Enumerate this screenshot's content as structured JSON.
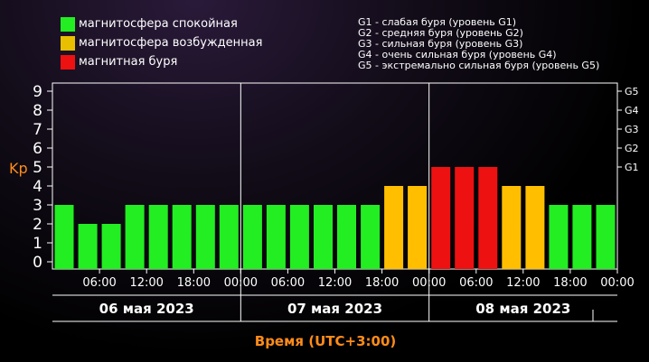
{
  "legend": [
    {
      "label": "магнитосфера спокойная",
      "color": "#22ee22"
    },
    {
      "label": "магнитосфера возбужденная",
      "color": "#e8c000"
    },
    {
      "label": "магнитная буря",
      "color": "#ee1111"
    }
  ],
  "g_levels": [
    "G1 - слабая буря (уровень G1)",
    "G2 - средняя буря (уровень G2)",
    "G3 - сильная буря (уровень G3)",
    "G4 - очень сильная буря (уровень G4)",
    "G5 - экстремально сильная буря (уровень G5)"
  ],
  "colors": {
    "quiet": "#22ee22",
    "active": "#ffbf00",
    "storm": "#ee1111",
    "axis_label": "#ff8c1a"
  },
  "chart_data": {
    "type": "bar",
    "ylabel": "Kp",
    "xlabel": "Время (UTC+3:00)",
    "ylim": [
      0,
      9
    ],
    "y_ticks": [
      "0",
      "1",
      "2",
      "3",
      "4",
      "5",
      "6",
      "7",
      "8",
      "9"
    ],
    "right_ticks": [
      {
        "y": 5,
        "label": "G1"
      },
      {
        "y": 6,
        "label": "G2"
      },
      {
        "y": 7,
        "label": "G3"
      },
      {
        "y": 8,
        "label": "G4"
      },
      {
        "y": 9,
        "label": "G5"
      }
    ],
    "x_ticks": [
      "06:00",
      "12:00",
      "18:00",
      "00:00",
      "06:00",
      "12:00",
      "18:00",
      "00:00",
      "06:00",
      "12:00",
      "18:00",
      "00:00"
    ],
    "days": [
      "06 мая 2023",
      "07 мая 2023",
      "08 мая 2023"
    ],
    "bars_per_day": 8,
    "values": [
      3,
      2,
      2,
      3,
      3,
      3,
      3,
      3,
      3,
      3,
      3,
      3,
      3,
      3,
      4,
      4,
      5,
      5,
      5,
      4,
      4,
      3,
      3,
      3
    ],
    "categories": [
      "quiet",
      "quiet",
      "quiet",
      "quiet",
      "quiet",
      "quiet",
      "quiet",
      "quiet",
      "quiet",
      "quiet",
      "quiet",
      "quiet",
      "quiet",
      "quiet",
      "active",
      "active",
      "storm",
      "storm",
      "storm",
      "active",
      "active",
      "quiet",
      "quiet",
      "quiet"
    ],
    "grid": false
  }
}
